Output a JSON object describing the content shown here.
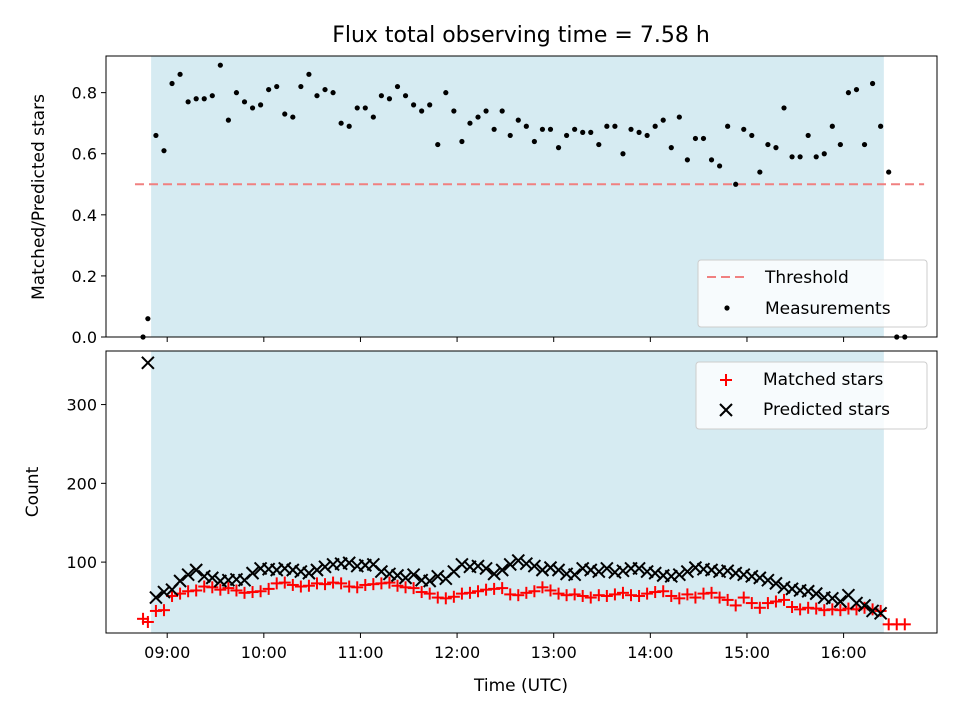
{
  "chart_data": [
    {
      "type": "scatter",
      "title": "Flux total observing time = 7.58 h",
      "xlabel": "",
      "ylabel": "Matched/Predicted stars",
      "xlim": [
        "08:22",
        "16:58"
      ],
      "ylim": [
        0,
        0.92
      ],
      "yticks": [
        0.0,
        0.2,
        0.4,
        0.6,
        0.8
      ],
      "ytick_labels": [
        "0.0",
        "0.2",
        "0.4",
        "0.6",
        "0.8"
      ],
      "observing_window": [
        "08:50",
        "16:25"
      ],
      "legend_position": "lower-right",
      "threshold": {
        "name": "Threshold",
        "value": 0.5,
        "range": [
          "08:40",
          "16:50"
        ],
        "color": "#f08080"
      },
      "series": [
        {
          "name": "Measurements",
          "marker": "dot",
          "color": "#000000",
          "x": [
            "08:45",
            "08:48",
            "08:53",
            "08:58",
            "09:03",
            "09:08",
            "09:13",
            "09:18",
            "09:23",
            "09:28",
            "09:33",
            "09:38",
            "09:43",
            "09:48",
            "09:53",
            "09:58",
            "10:03",
            "10:08",
            "10:13",
            "10:18",
            "10:23",
            "10:28",
            "10:33",
            "10:38",
            "10:43",
            "10:48",
            "10:53",
            "10:58",
            "11:03",
            "11:08",
            "11:13",
            "11:18",
            "11:23",
            "11:28",
            "11:33",
            "11:38",
            "11:43",
            "11:48",
            "11:53",
            "11:58",
            "12:03",
            "12:08",
            "12:13",
            "12:18",
            "12:23",
            "12:28",
            "12:33",
            "12:38",
            "12:43",
            "12:48",
            "12:53",
            "12:58",
            "13:03",
            "13:08",
            "13:13",
            "13:18",
            "13:23",
            "13:28",
            "13:33",
            "13:38",
            "13:43",
            "13:48",
            "13:53",
            "13:58",
            "14:03",
            "14:08",
            "14:13",
            "14:18",
            "14:23",
            "14:28",
            "14:33",
            "14:38",
            "14:43",
            "14:48",
            "14:53",
            "14:58",
            "15:03",
            "15:08",
            "15:13",
            "15:18",
            "15:23",
            "15:28",
            "15:33",
            "15:38",
            "15:43",
            "15:48",
            "15:53",
            "15:58",
            "16:03",
            "16:08",
            "16:13",
            "16:18",
            "16:23",
            "16:28",
            "16:33",
            "16:38"
          ],
          "y": [
            0.0,
            0.06,
            0.66,
            0.61,
            0.83,
            0.86,
            0.77,
            0.78,
            0.78,
            0.79,
            0.89,
            0.71,
            0.8,
            0.77,
            0.75,
            0.76,
            0.81,
            0.82,
            0.73,
            0.72,
            0.82,
            0.86,
            0.79,
            0.81,
            0.8,
            0.7,
            0.69,
            0.75,
            0.75,
            0.72,
            0.79,
            0.78,
            0.82,
            0.79,
            0.76,
            0.74,
            0.76,
            0.63,
            0.8,
            0.74,
            0.64,
            0.7,
            0.72,
            0.74,
            0.68,
            0.74,
            0.66,
            0.71,
            0.69,
            0.64,
            0.68,
            0.68,
            0.62,
            0.66,
            0.68,
            0.67,
            0.67,
            0.63,
            0.69,
            0.69,
            0.6,
            0.68,
            0.67,
            0.66,
            0.69,
            0.71,
            0.62,
            0.72,
            0.58,
            0.65,
            0.65,
            0.58,
            0.56,
            0.69,
            0.5,
            0.68,
            0.66,
            0.54,
            0.63,
            0.62,
            0.75,
            0.59,
            0.59,
            0.66,
            0.59,
            0.6,
            0.69,
            0.63,
            0.8,
            0.81,
            0.63,
            0.83,
            0.69,
            0.54,
            0.0,
            0.0
          ]
        }
      ]
    },
    {
      "type": "scatter",
      "title": "",
      "xlabel": "Time (UTC)",
      "ylabel": "Count",
      "xlim": [
        "08:22",
        "16:58"
      ],
      "ylim": [
        10,
        368
      ],
      "yticks": [
        100,
        200,
        300
      ],
      "ytick_labels": [
        "100",
        "200",
        "300"
      ],
      "xticks": [
        "09:00",
        "10:00",
        "11:00",
        "12:00",
        "13:00",
        "14:00",
        "15:00",
        "16:00"
      ],
      "xtick_labels": [
        "09:00",
        "10:00",
        "11:00",
        "12:00",
        "13:00",
        "14:00",
        "15:00",
        "16:00"
      ],
      "observing_window": [
        "08:50",
        "16:25"
      ],
      "legend_position": "upper-right",
      "series": [
        {
          "name": "Matched stars",
          "marker": "plus",
          "color": "#ff0000",
          "x": [
            "08:45",
            "08:48",
            "08:53",
            "08:58",
            "09:03",
            "09:08",
            "09:13",
            "09:18",
            "09:23",
            "09:28",
            "09:33",
            "09:38",
            "09:43",
            "09:48",
            "09:53",
            "09:58",
            "10:03",
            "10:08",
            "10:13",
            "10:18",
            "10:23",
            "10:28",
            "10:33",
            "10:38",
            "10:43",
            "10:48",
            "10:53",
            "10:58",
            "11:03",
            "11:08",
            "11:13",
            "11:18",
            "11:23",
            "11:28",
            "11:33",
            "11:38",
            "11:43",
            "11:48",
            "11:53",
            "11:58",
            "12:03",
            "12:08",
            "12:13",
            "12:18",
            "12:23",
            "12:28",
            "12:33",
            "12:38",
            "12:43",
            "12:48",
            "12:53",
            "12:58",
            "13:03",
            "13:08",
            "13:13",
            "13:18",
            "13:23",
            "13:28",
            "13:33",
            "13:38",
            "13:43",
            "13:48",
            "13:53",
            "13:58",
            "14:03",
            "14:08",
            "14:13",
            "14:18",
            "14:23",
            "14:28",
            "14:33",
            "14:38",
            "14:43",
            "14:48",
            "14:53",
            "14:58",
            "15:03",
            "15:08",
            "15:13",
            "15:18",
            "15:23",
            "15:28",
            "15:33",
            "15:38",
            "15:43",
            "15:48",
            "15:53",
            "15:58",
            "16:03",
            "16:08",
            "16:13",
            "16:18",
            "16:23",
            "16:28",
            "16:33",
            "16:38"
          ],
          "y": [
            28,
            24,
            38,
            39,
            57,
            60,
            63,
            64,
            69,
            68,
            65,
            67,
            64,
            61,
            62,
            63,
            66,
            73,
            74,
            71,
            69,
            70,
            73,
            72,
            74,
            73,
            69,
            68,
            71,
            72,
            73,
            74,
            70,
            68,
            67,
            62,
            60,
            55,
            54,
            56,
            60,
            61,
            63,
            65,
            66,
            67,
            59,
            58,
            61,
            63,
            68,
            64,
            60,
            58,
            59,
            57,
            55,
            58,
            57,
            59,
            61,
            58,
            57,
            60,
            62,
            63,
            57,
            54,
            59,
            55,
            60,
            61,
            55,
            52,
            45,
            55,
            48,
            42,
            48,
            50,
            52,
            43,
            40,
            42,
            41,
            39,
            40,
            39,
            41,
            40,
            42,
            40,
            38,
            21,
            21,
            21
          ]
        },
        {
          "name": "Predicted stars",
          "marker": "x",
          "color": "#000000",
          "x": [
            "08:48",
            "08:53",
            "08:58",
            "09:03",
            "09:08",
            "09:13",
            "09:18",
            "09:23",
            "09:28",
            "09:33",
            "09:38",
            "09:43",
            "09:48",
            "09:53",
            "09:58",
            "10:03",
            "10:08",
            "10:13",
            "10:18",
            "10:23",
            "10:28",
            "10:33",
            "10:38",
            "10:43",
            "10:48",
            "10:53",
            "10:58",
            "11:03",
            "11:08",
            "11:13",
            "11:18",
            "11:23",
            "11:28",
            "11:33",
            "11:38",
            "11:43",
            "11:48",
            "11:53",
            "11:58",
            "12:03",
            "12:08",
            "12:13",
            "12:18",
            "12:23",
            "12:28",
            "12:33",
            "12:38",
            "12:43",
            "12:48",
            "12:53",
            "12:58",
            "13:03",
            "13:08",
            "13:13",
            "13:18",
            "13:23",
            "13:28",
            "13:33",
            "13:38",
            "13:43",
            "13:48",
            "13:53",
            "13:58",
            "14:03",
            "14:08",
            "14:13",
            "14:18",
            "14:23",
            "14:28",
            "14:33",
            "14:38",
            "14:43",
            "14:48",
            "14:53",
            "14:58",
            "15:03",
            "15:08",
            "15:13",
            "15:18",
            "15:23",
            "15:28",
            "15:33",
            "15:38",
            "15:43",
            "15:48",
            "15:53",
            "15:58",
            "16:03",
            "16:08",
            "16:13",
            "16:18",
            "16:23"
          ],
          "y": [
            353,
            55,
            62,
            65,
            76,
            84,
            90,
            82,
            80,
            76,
            77,
            78,
            77,
            86,
            92,
            91,
            90,
            92,
            90,
            88,
            86,
            90,
            94,
            97,
            98,
            99,
            95,
            96,
            97,
            88,
            85,
            83,
            80,
            84,
            77,
            76,
            82,
            79,
            88,
            97,
            94,
            95,
            92,
            85,
            90,
            97,
            102,
            98,
            95,
            90,
            93,
            90,
            85,
            84,
            92,
            90,
            88,
            92,
            87,
            89,
            92,
            92,
            88,
            86,
            83,
            82,
            84,
            88,
            93,
            91,
            90,
            88,
            89,
            86,
            84,
            82,
            80,
            77,
            73,
            68,
            66,
            64,
            63,
            60,
            55,
            54,
            50,
            58,
            48,
            45,
            38,
            35
          ]
        }
      ]
    }
  ]
}
